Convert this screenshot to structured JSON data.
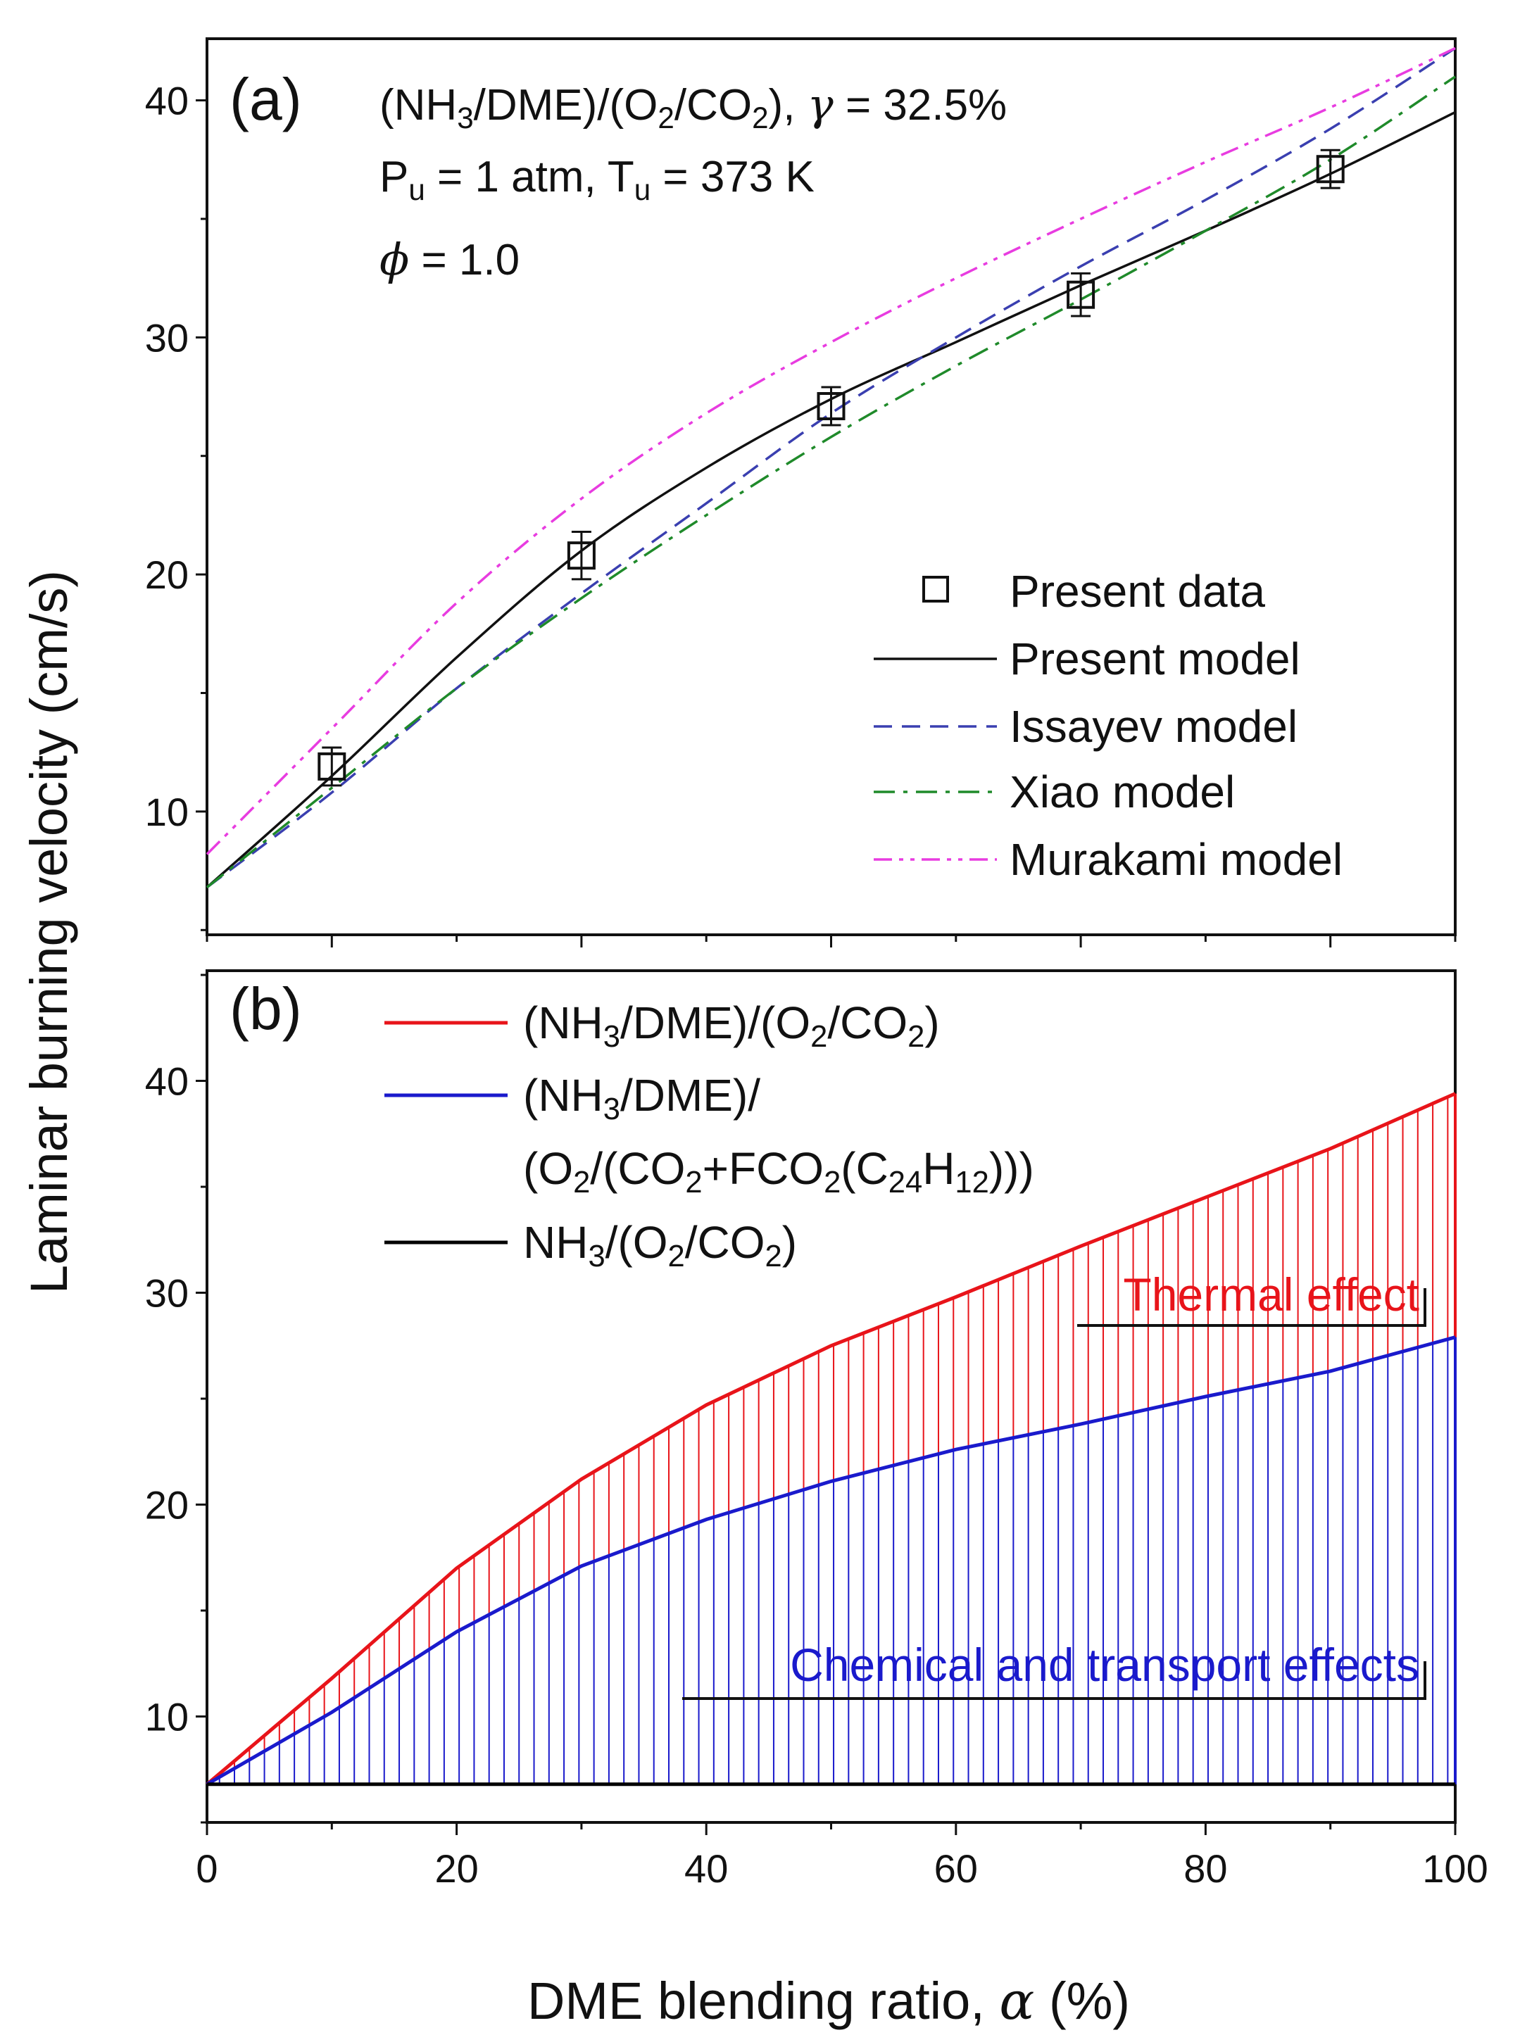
{
  "colors": {
    "present_model": "#111111",
    "issayev": "#3a3fb0",
    "xiao": "#1f8a2a",
    "murakami": "#e83ce0",
    "red": "#e8141a",
    "blue": "#1a1acc",
    "black": "#000000"
  },
  "axis_labels": {
    "y": "Laminar burning velocity (cm/s)",
    "x_prefix": "DME blending ratio, ",
    "x_alpha": "α",
    "x_suffix": " (%)"
  },
  "chart_data": [
    {
      "type": "line",
      "panel_label": "(a)",
      "annotations": [
        [
          {
            "t": "(NH"
          },
          {
            "t": "3",
            "sub": true
          },
          {
            "t": "/DME)/(O"
          },
          {
            "t": "2",
            "sub": true
          },
          {
            "t": "/CO"
          },
          {
            "t": "2",
            "sub": true
          },
          {
            "t": "), "
          },
          {
            "t": "γ",
            "it": true
          },
          {
            "t": " = 32.5%"
          }
        ],
        [
          {
            "t": "P"
          },
          {
            "t": "u",
            "sub": true
          },
          {
            "t": " = 1 atm, T"
          },
          {
            "t": "u",
            "sub": true
          },
          {
            "t": " = 373 K"
          }
        ],
        [
          {
            "t": "ϕ",
            "it": true
          },
          {
            "t": " = 1.0"
          }
        ]
      ],
      "xlim": [
        0,
        100
      ],
      "ylim": [
        4.8,
        42.6
      ],
      "yticks": [
        10,
        20,
        30,
        40
      ],
      "x": [
        0,
        10,
        20,
        30,
        40,
        50,
        60,
        70,
        80,
        90,
        100
      ],
      "scatter": {
        "name": "Present data",
        "x": [
          10,
          30,
          50,
          70,
          90
        ],
        "y": [
          11.9,
          20.8,
          27.1,
          31.8,
          37.1
        ],
        "err": [
          0.8,
          1.0,
          0.8,
          0.9,
          0.8
        ]
      },
      "series": [
        {
          "name": "Present model",
          "style": "solid",
          "color_key": "present_model",
          "values": [
            6.8,
            11.5,
            16.5,
            21.0,
            24.5,
            27.4,
            29.8,
            32.2,
            34.5,
            36.9,
            39.5
          ]
        },
        {
          "name": "Issayev model",
          "style": "dash",
          "color_key": "issayev",
          "values": [
            6.8,
            10.8,
            15.2,
            19.2,
            23.0,
            26.8,
            30.0,
            33.0,
            35.8,
            38.8,
            42.2
          ]
        },
        {
          "name": "Xiao model",
          "style": "dashdot",
          "color_key": "xiao",
          "values": [
            6.8,
            11.0,
            15.2,
            19.0,
            22.5,
            25.8,
            28.8,
            31.6,
            34.5,
            37.5,
            41.0
          ]
        },
        {
          "name": "Murakami model",
          "style": "dashdotdot",
          "color_key": "murakami",
          "values": [
            8.2,
            13.5,
            18.8,
            23.2,
            26.8,
            29.8,
            32.5,
            35.0,
            37.4,
            39.7,
            42.2
          ]
        }
      ],
      "legend_position": "lower-right"
    },
    {
      "type": "area",
      "panel_label": "(b)",
      "xlim": [
        0,
        100
      ],
      "ylim": [
        5,
        45.2
      ],
      "xticks": [
        0,
        20,
        40,
        60,
        80,
        100
      ],
      "yticks": [
        10,
        20,
        30,
        40
      ],
      "x": [
        0,
        10,
        20,
        30,
        40,
        50,
        60,
        70,
        80,
        90,
        100
      ],
      "series": [
        {
          "name": [
            {
              "t": "(NH"
            },
            {
              "t": "3",
              "sub": true
            },
            {
              "t": "/DME)/(O"
            },
            {
              "t": "2",
              "sub": true
            },
            {
              "t": "/CO"
            },
            {
              "t": "2",
              "sub": true
            },
            {
              "t": ")"
            }
          ],
          "color_key": "red",
          "values": [
            6.8,
            11.8,
            17.0,
            21.2,
            24.7,
            27.5,
            29.8,
            32.2,
            34.5,
            36.8,
            39.4
          ]
        },
        {
          "name": [
            {
              "t": "(NH"
            },
            {
              "t": "3",
              "sub": true
            },
            {
              "t": "/DME)/"
            }
          ],
          "name_line2": [
            {
              "t": "(O"
            },
            {
              "t": "2",
              "sub": true
            },
            {
              "t": "/(CO"
            },
            {
              "t": "2",
              "sub": true
            },
            {
              "t": "+FCO"
            },
            {
              "t": "2",
              "sub": true
            },
            {
              "t": "(C"
            },
            {
              "t": "24",
              "sub": true
            },
            {
              "t": "H"
            },
            {
              "t": "12",
              "sub": true
            },
            {
              "t": ")))"
            }
          ],
          "color_key": "blue",
          "values": [
            6.8,
            10.2,
            14.0,
            17.1,
            19.3,
            21.1,
            22.6,
            23.8,
            25.1,
            26.3,
            27.9
          ]
        },
        {
          "name": [
            {
              "t": "NH"
            },
            {
              "t": "3",
              "sub": true
            },
            {
              "t": "/(O"
            },
            {
              "t": "2",
              "sub": true
            },
            {
              "t": "/CO"
            },
            {
              "t": "2",
              "sub": true
            },
            {
              "t": ")"
            }
          ],
          "color_key": "black",
          "values": [
            6.8,
            6.8,
            6.8,
            6.8,
            6.8,
            6.8,
            6.8,
            6.8,
            6.8,
            6.8,
            6.8
          ]
        }
      ],
      "region_labels": {
        "thermal": "Thermal effect",
        "chemical": "Chemical and transport effects"
      },
      "legend_position": "top-left"
    }
  ]
}
